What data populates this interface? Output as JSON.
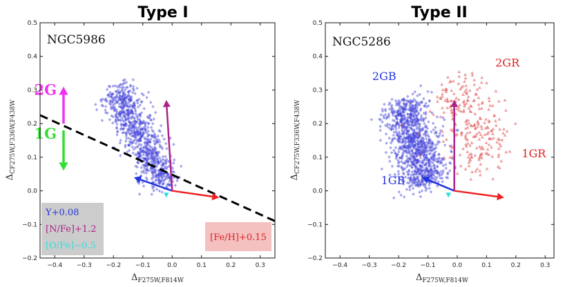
{
  "chart_data": [
    {
      "type": "scatter",
      "title": "Type I",
      "cluster": "NGC5986",
      "xlabel": {
        "main": "Δ",
        "sub": "F275W,F814W"
      },
      "ylabel": {
        "main": "Δ",
        "sub": "CF275W,F336W,F438W"
      },
      "xlim": [
        -0.45,
        0.35
      ],
      "ylim": [
        -0.2,
        0.5
      ],
      "xticks": [
        -0.4,
        -0.3,
        -0.2,
        -0.1,
        0.0,
        0.1,
        0.2,
        0.3
      ],
      "yticks": [
        -0.2,
        -0.1,
        0.0,
        0.1,
        0.2,
        0.3,
        0.4,
        0.5
      ],
      "tick_labels_x": [
        "−0.4",
        "−0.3",
        "−0.2",
        "−0.1",
        "0.0",
        "0.1",
        "0.2",
        "0.3"
      ],
      "tick_labels_y": [
        "−0.2",
        "−0.1",
        "0.0",
        "0.1",
        "0.2",
        "0.3",
        "0.4",
        "0.5"
      ],
      "series": [
        {
          "color": "#4a4adc",
          "marker": "diamond",
          "cloud": {
            "n": 900,
            "start": [
              -0.19,
              0.3
            ],
            "end": [
              -0.02,
              0.02
            ],
            "spread": 0.03
          }
        }
      ],
      "dashed_line": {
        "x": [
          -0.45,
          0.35
        ],
        "y": [
          0.225,
          -0.09
        ]
      },
      "population_labels": [
        {
          "text": "2G",
          "color": "#ee33ee",
          "arrow": {
            "from": [
              -0.37,
              0.2
            ],
            "to": [
              -0.37,
              0.31
            ]
          }
        },
        {
          "text": "1G",
          "color": "#33dd33",
          "arrow": {
            "from": [
              -0.37,
              0.18
            ],
            "to": [
              -0.37,
              0.06
            ]
          }
        }
      ],
      "vectors": [
        {
          "color": "#2233dd",
          "from": [
            0.0,
            0.0
          ],
          "to": [
            -0.13,
            0.04
          ]
        },
        {
          "color": "#aa2288",
          "from": [
            0.0,
            0.0
          ],
          "to": [
            -0.02,
            0.27
          ]
        },
        {
          "color": "#ee2222",
          "from": [
            0.0,
            0.0
          ],
          "to": [
            0.16,
            -0.02
          ]
        },
        {
          "color": "#33dddd",
          "from": [
            -0.02,
            -0.005
          ],
          "to": [
            -0.02,
            -0.02
          ]
        }
      ],
      "legend": {
        "placement": "bottom-left",
        "entries": [
          {
            "text": "Y+0.08",
            "color": "#2233dd"
          },
          {
            "text": "[N/Fe]+1.2",
            "color": "#aa2288"
          },
          {
            "text": "[O/Fe]−0.5",
            "color": "#33dddd"
          }
        ]
      },
      "fe_label": {
        "text": "[Fe/H]+0.15",
        "color": "#dd2222",
        "placement": "bottom-right"
      }
    },
    {
      "type": "scatter",
      "title": "Type II",
      "cluster": "NGC5286",
      "xlabel": {
        "main": "Δ",
        "sub": "F275W,F814W"
      },
      "ylabel": {
        "main": "Δ",
        "sub": "CF275W,F336W,F438W"
      },
      "xlim": [
        -0.45,
        0.33
      ],
      "ylim": [
        -0.2,
        0.5
      ],
      "xticks": [
        -0.4,
        -0.3,
        -0.2,
        -0.1,
        0.0,
        0.1,
        0.2,
        0.3
      ],
      "yticks": [
        -0.2,
        -0.1,
        0.0,
        0.1,
        0.2,
        0.3,
        0.4,
        0.5
      ],
      "tick_labels_x": [
        "−0.4",
        "−0.3",
        "−0.2",
        "−0.1",
        "0.0",
        "0.1",
        "0.2",
        "0.3"
      ],
      "tick_labels_y": [
        "−0.2",
        "−0.1",
        "0.0",
        "0.1",
        "0.2",
        "0.3",
        "0.4",
        "0.5"
      ],
      "series": [
        {
          "color": "#4a4adc",
          "marker": "diamond",
          "cloud": {
            "n": 1100,
            "start": [
              -0.19,
              0.26
            ],
            "end": [
              -0.1,
              0.02
            ],
            "spread": 0.04
          }
        },
        {
          "color": "#e05050",
          "marker": "triangle",
          "cloud": {
            "n": 260,
            "start": [
              -0.02,
              0.32
            ],
            "end": [
              0.12,
              0.08
            ],
            "spread": 0.05
          }
        }
      ],
      "group_labels": [
        {
          "text": "2GB",
          "color": "#2233dd",
          "at": [
            -0.29,
            0.33
          ]
        },
        {
          "text": "1GB",
          "color": "#2233dd",
          "at": [
            -0.26,
            0.02
          ]
        },
        {
          "text": "2GR",
          "color": "#dd2222",
          "at": [
            0.13,
            0.37
          ]
        },
        {
          "text": "1GR",
          "color": "#dd2222",
          "at": [
            0.22,
            0.1
          ]
        }
      ],
      "vectors": [
        {
          "color": "#2233dd",
          "from": [
            -0.01,
            0.0
          ],
          "to": [
            -0.12,
            0.04
          ]
        },
        {
          "color": "#aa2288",
          "from": [
            -0.01,
            0.0
          ],
          "to": [
            -0.01,
            0.27
          ]
        },
        {
          "color": "#ee2222",
          "from": [
            -0.01,
            0.0
          ],
          "to": [
            0.16,
            -0.02
          ]
        },
        {
          "color": "#33dddd",
          "from": [
            -0.03,
            -0.005
          ],
          "to": [
            -0.03,
            -0.02
          ]
        }
      ]
    }
  ]
}
